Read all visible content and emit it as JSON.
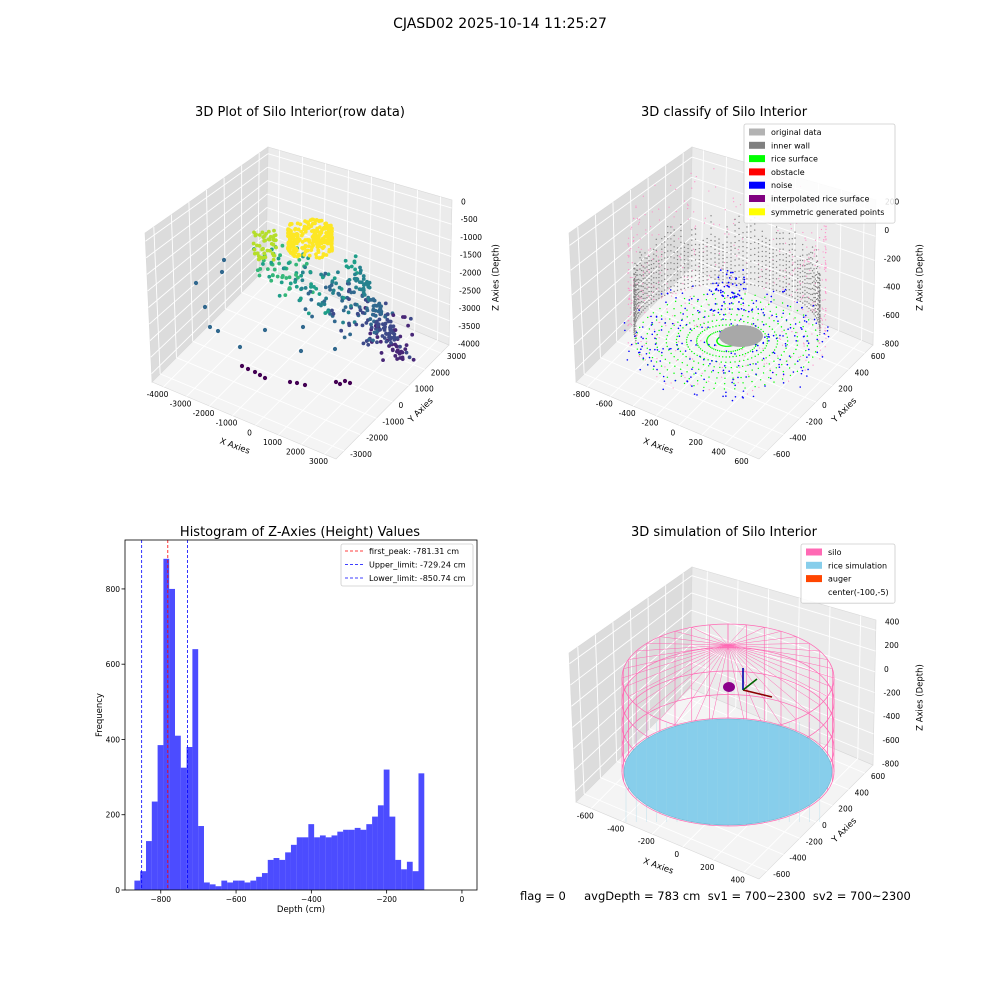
{
  "suptitle": "CJASD02 2025-10-14 11:25:27",
  "status_line": "flag = 0     avgDepth = 783 cm  sv1 = 700~2300  sv2 = 700~2300",
  "colors": {
    "hist_bar": "#0000ff",
    "peak_line": "#ff0000",
    "limit_line": "#0000ff",
    "original": "#b3b3b3",
    "inner_wall": "#808080",
    "rice_surface": "#00ff00",
    "obstacle": "#ff0000",
    "noise": "#0000ff",
    "interpolated": "#800080",
    "symmetric": "#ffff00",
    "silo": "#ff69b4",
    "rice_sim": "#87ceeb",
    "auger": "#ff4500"
  },
  "chart_data": [
    {
      "type": "scatter",
      "title": "3D Plot of Silo Interior(row data)",
      "xlabel": "X Axies",
      "ylabel": "Y Axies",
      "zlabel": "Z Axies (Depth)",
      "xlim": [
        -4000,
        3000
      ],
      "ylim": [
        -3000,
        3000
      ],
      "zlim": [
        -4000,
        0
      ],
      "x_ticks": [
        "-4000",
        "-3000",
        "-2000",
        "-1000",
        "0",
        "1000",
        "2000",
        "3000"
      ],
      "y_ticks": [
        "-3000",
        "-2000",
        "-1000",
        "0",
        "1000",
        "2000",
        "3000"
      ],
      "z_ticks": [
        "0",
        "-500",
        "-1000",
        "-1500",
        "-2000",
        "-2500",
        "-3000",
        "-3500",
        "-4000"
      ],
      "colormap": "viridis"
    },
    {
      "type": "scatter",
      "title": "3D classify of Silo Interior",
      "xlabel": "X Axies",
      "ylabel": "Y Axies",
      "zlabel": "Z Axies (Depth)",
      "xlim": [
        -800,
        600
      ],
      "ylim": [
        -600,
        600
      ],
      "zlim": [
        -800,
        200
      ],
      "x_ticks": [
        "-800",
        "-600",
        "-400",
        "-200",
        "0",
        "200",
        "400",
        "600"
      ],
      "y_ticks": [
        "-600",
        "-400",
        "-200",
        "0",
        "200",
        "400",
        "600"
      ],
      "z_ticks": [
        "200",
        "0",
        "-200",
        "-400",
        "-600",
        "-800"
      ],
      "legend": [
        "original data",
        "inner wall",
        "rice surface",
        "obstacle",
        "noise",
        "interpolated rice surface",
        "symmetric generated points"
      ],
      "legend_position": "top-right"
    },
    {
      "type": "bar",
      "title": "Histogram of Z-Axies (Height) Values",
      "xlabel": "Depth (cm)",
      "ylabel": "Frequency",
      "x_ticks": [
        "−800",
        "−600",
        "−400",
        "−200",
        "0"
      ],
      "y_ticks": [
        "0",
        "200",
        "400",
        "600",
        "800"
      ],
      "xlim": [
        -895,
        40
      ],
      "ylim": [
        0,
        930
      ],
      "bin_start": -870,
      "bin_width": 15.4,
      "values": [
        25,
        50,
        130,
        235,
        385,
        880,
        800,
        410,
        325,
        380,
        640,
        170,
        20,
        15,
        10,
        25,
        20,
        25,
        25,
        20,
        25,
        35,
        45,
        80,
        85,
        80,
        100,
        120,
        140,
        140,
        175,
        140,
        145,
        140,
        145,
        155,
        160,
        160,
        165,
        160,
        175,
        195,
        225,
        320,
        195,
        80,
        55,
        75,
        50,
        310
      ],
      "vlines": [
        {
          "label": "first_peak: -781.31 cm",
          "value": -781.31,
          "color": "red"
        },
        {
          "label": "Upper_limit: -729.24 cm",
          "value": -729.24,
          "color": "blue"
        },
        {
          "label": "Lower_limit: -850.74 cm",
          "value": -850.74,
          "color": "blue"
        }
      ],
      "legend_position": "top-right"
    },
    {
      "type": "scatter",
      "title": "3D simulation of Silo Interior",
      "xlabel": "X Axies",
      "ylabel": "Y Axies",
      "zlabel": "Z Axies (Depth)",
      "x_ticks": [
        "-600",
        "-400",
        "-200",
        "0",
        "200",
        "400"
      ],
      "y_ticks": [
        "-600",
        "-400",
        "-200",
        "0",
        "200",
        "400",
        "600"
      ],
      "z_ticks": [
        "400",
        "200",
        "0",
        "-200",
        "-400",
        "-600",
        "-800"
      ],
      "legend": [
        "silo",
        "rice simulation",
        "auger",
        "center(-100,-5)"
      ],
      "legend_position": "top-right"
    }
  ]
}
